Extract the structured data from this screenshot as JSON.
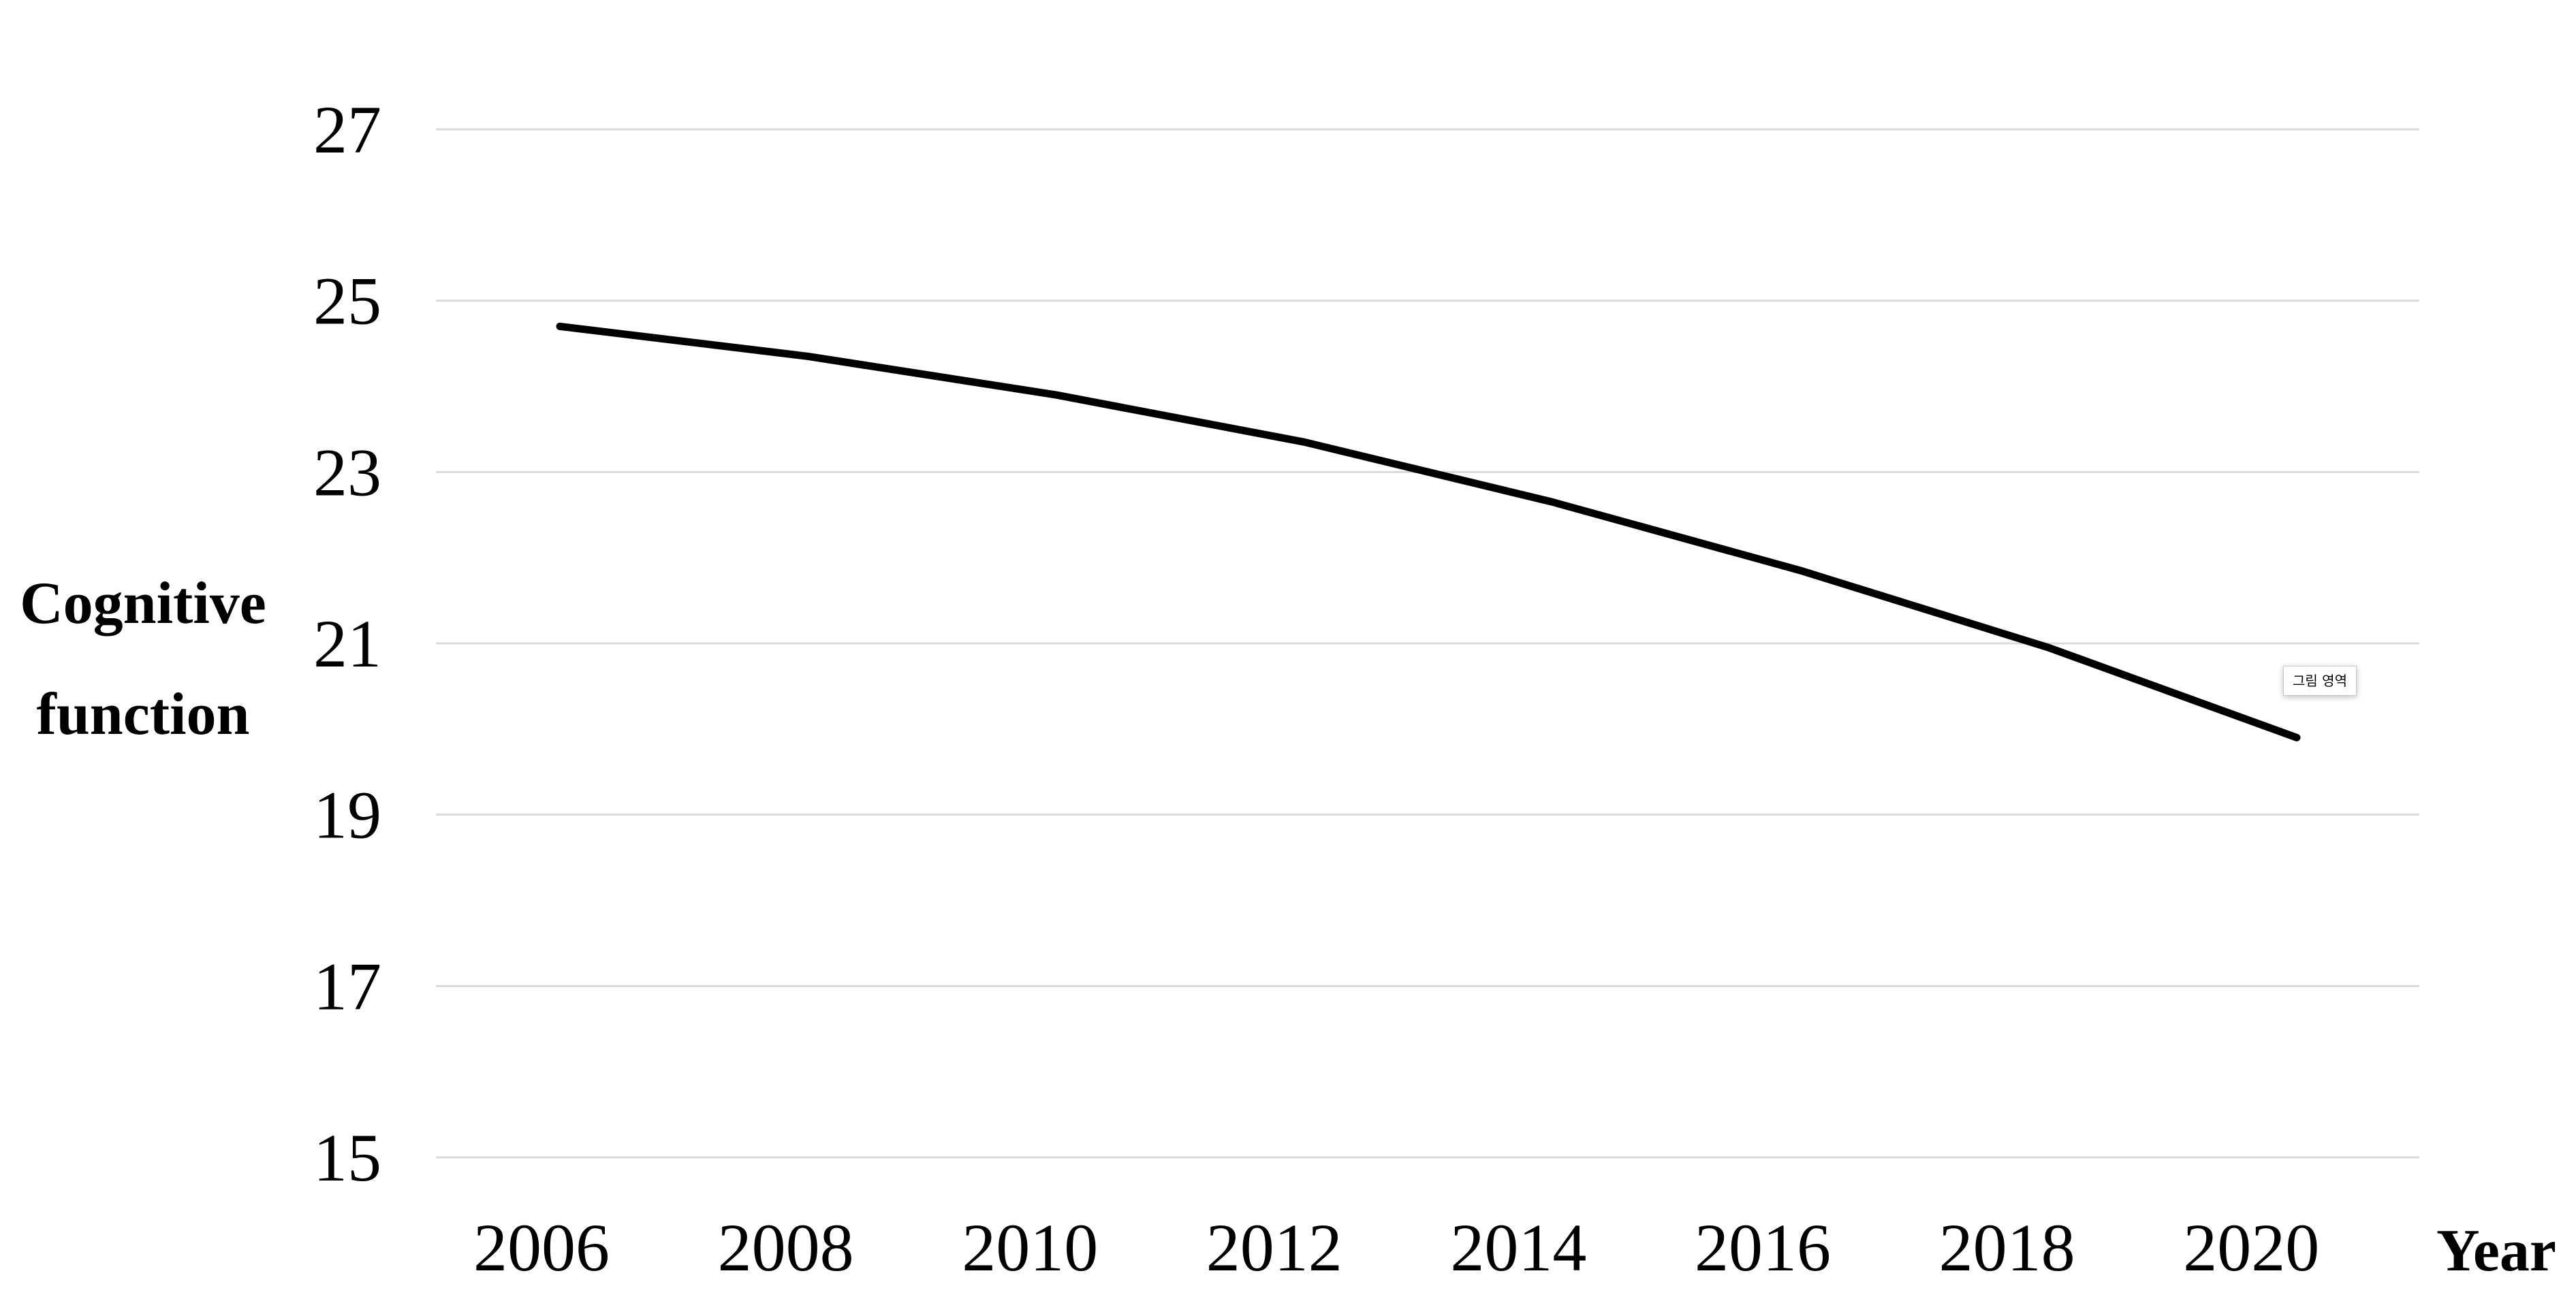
{
  "chart_data": {
    "type": "line",
    "xlabel": "Year",
    "ylabel_lines": [
      "Cognitive",
      "function"
    ],
    "categories": [
      "2006",
      "2008",
      "2010",
      "2012",
      "2014",
      "2016",
      "2018",
      "2020"
    ],
    "series": [
      {
        "values": [
          24.7,
          24.35,
          23.9,
          23.35,
          22.65,
          21.85,
          20.95,
          19.9
        ]
      }
    ],
    "ylim": [
      15,
      27
    ],
    "yticks": [
      27,
      25,
      23,
      21,
      19,
      17,
      15
    ],
    "grid": true,
    "line_color": "#000000",
    "grid_color": "#d9d9d9",
    "tooltip": "그림 영역"
  }
}
